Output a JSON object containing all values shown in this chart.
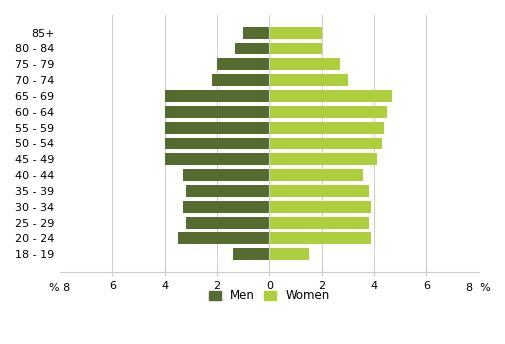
{
  "age_groups": [
    "18 - 19",
    "20 - 24",
    "25 - 29",
    "30 - 34",
    "35 - 39",
    "40 - 44",
    "45 - 49",
    "50 - 54",
    "55 - 59",
    "60 - 64",
    "65 - 69",
    "70 - 74",
    "75 - 79",
    "80 - 84",
    "85+"
  ],
  "men_values": [
    1.4,
    3.5,
    3.2,
    3.3,
    3.2,
    3.3,
    4.0,
    4.0,
    4.0,
    4.0,
    4.0,
    2.2,
    2.0,
    1.3,
    1.0
  ],
  "women_values": [
    1.5,
    3.9,
    3.8,
    3.9,
    3.8,
    3.6,
    4.1,
    4.3,
    4.4,
    4.5,
    4.7,
    3.0,
    2.7,
    2.0,
    2.0
  ],
  "men_color": "#556B2F",
  "women_color": "#ADCF3B",
  "xlim": 8,
  "background_color": "#ffffff",
  "grid_color": "#cccccc",
  "legend_men": "Men",
  "legend_women": "Women",
  "bar_height": 0.75
}
